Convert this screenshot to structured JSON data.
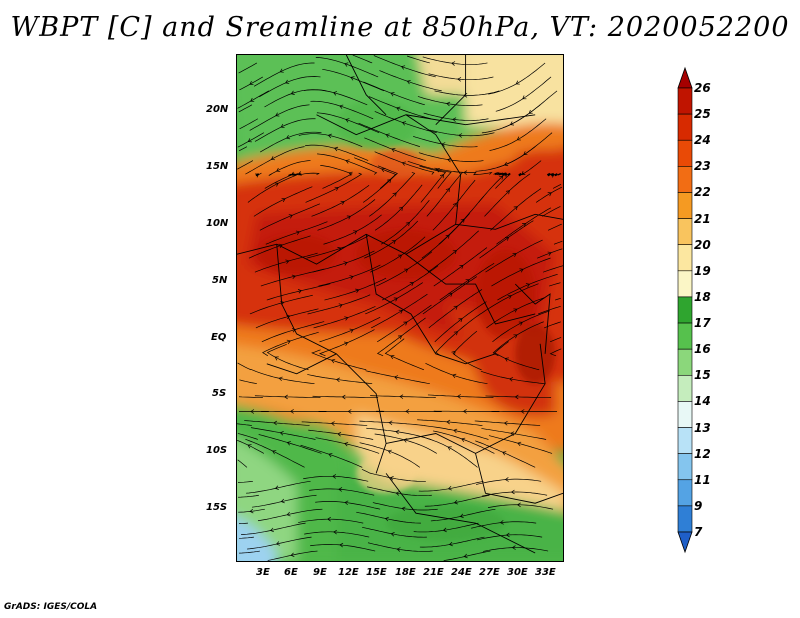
{
  "title": "WBPT [C] and Sreamline at 850hPa, VT: 2020052200",
  "footer": "GrADS: IGES/COLA",
  "y_ticks": [
    "20N",
    "15N",
    "10N",
    "5N",
    "EQ",
    "5S",
    "10S",
    "15S"
  ],
  "x_ticks": [
    "3E",
    "6E",
    "9E",
    "12E",
    "15E",
    "18E",
    "21E",
    "24E",
    "27E",
    "30E",
    "33E"
  ],
  "colorbar": {
    "labels": [
      "26",
      "25",
      "24",
      "23",
      "22",
      "21",
      "20",
      "19",
      "18",
      "17",
      "16",
      "15",
      "14",
      "13",
      "12",
      "11",
      "9",
      "7"
    ],
    "colors": [
      "#a50000",
      "#c01400",
      "#d72a00",
      "#e94a06",
      "#f26d14",
      "#f59a22",
      "#f9c45e",
      "#fce7a0",
      "#fbf6c6",
      "#2fa52f",
      "#56c14d",
      "#8bd77b",
      "#c5edbd",
      "#e8f8f6",
      "#b8e2f7",
      "#84c5ee",
      "#54a3e4",
      "#2f7fd6",
      "#1f5fc8"
    ]
  },
  "colors": {
    "hot": "#c41e0a",
    "warm": "#ee7a1e",
    "mild": "#f8d890",
    "green": "#4fb84a",
    "lightgreen": "#a5de92",
    "blue": "#9dd2f0"
  }
}
